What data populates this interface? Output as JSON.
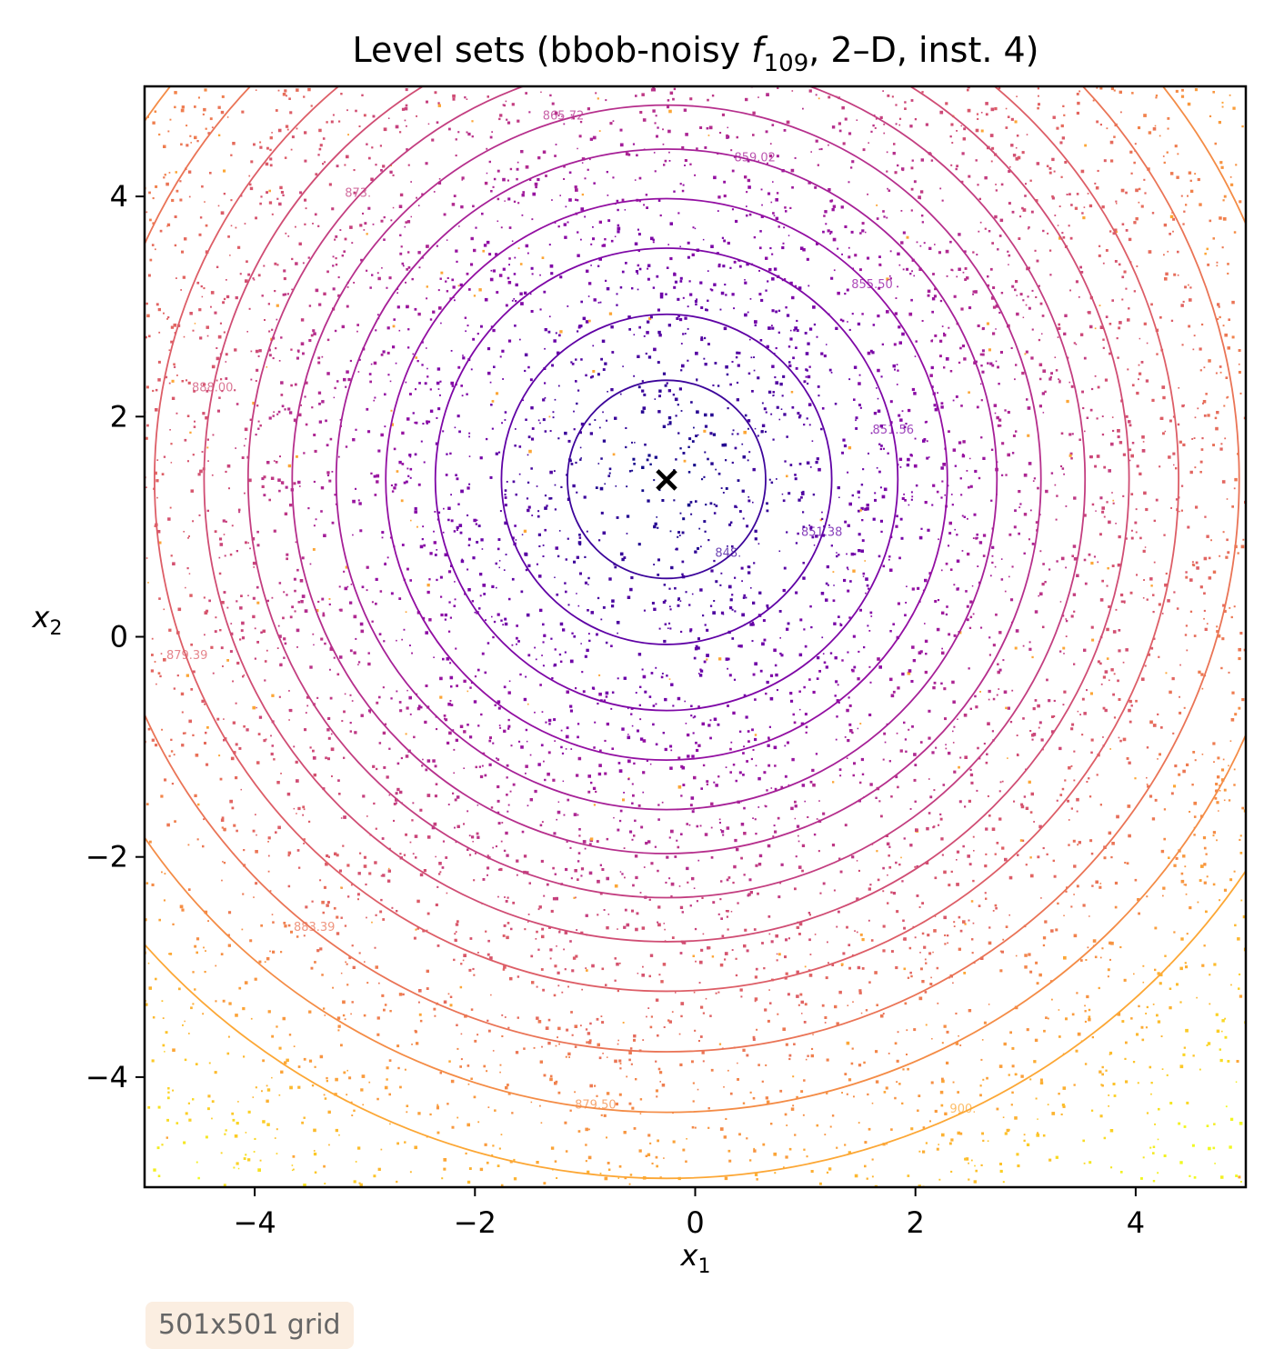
{
  "chart_data": {
    "type": "contour",
    "title_main": "Level sets (bbob-noisy ",
    "title_f": "f",
    "title_sub": "109",
    "title_tail": ", 2–D, inst. 4)",
    "xlabel_var": "x",
    "xlabel_sub": "1",
    "ylabel_var": "x",
    "ylabel_sub": "2",
    "xlim": [
      -5,
      5
    ],
    "ylim": [
      -5,
      5
    ],
    "xticks": [
      -4,
      -2,
      0,
      2,
      4
    ],
    "yticks": [
      -4,
      -2,
      0,
      2,
      4
    ],
    "xtick_labels": [
      "−4",
      "−2",
      "0",
      "2",
      "4"
    ],
    "ytick_labels": [
      "−4",
      "−2",
      "0",
      "2",
      "4"
    ],
    "optimum": {
      "x": -0.26,
      "y": 1.43,
      "marker": "×"
    },
    "contour_radii": [
      0.9,
      1.5,
      2.1,
      2.55,
      3.0,
      3.4,
      3.8,
      4.2,
      4.65,
      5.2,
      5.75,
      6.35
    ],
    "contour_level_labels": [
      "848.",
      "851.38",
      "851.56",
      "855.50",
      "859.02",
      "865.72",
      "873.",
      "888.00",
      "879.39",
      "883.39",
      "879.50",
      "900."
    ],
    "colormap": "plasma",
    "colors": [
      "#0d0887",
      "#3a049a",
      "#6a00a8",
      "#900da4",
      "#b12a90",
      "#cc4778",
      "#e16462",
      "#f2844b",
      "#fca636",
      "#fcce25",
      "#f0f921"
    ],
    "grid": false,
    "note": "501x501 grid"
  }
}
